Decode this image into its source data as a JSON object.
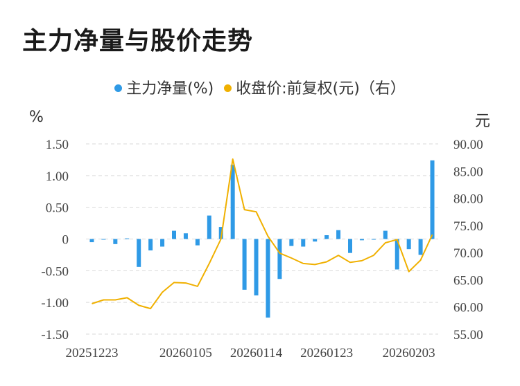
{
  "title": "主力净量与股价走势",
  "legend": {
    "main_force": "主力净量(%)",
    "close_price": "收盘价:前复权(元)（右）"
  },
  "units": {
    "left": "%",
    "right": "元"
  },
  "colors": {
    "bar": "#2f9ae6",
    "line": "#f0b000",
    "grid": "#d9d9d9"
  },
  "chart_data": {
    "type": "bar+line",
    "x_tick_labels": [
      "20251223",
      "20260105",
      "20260114",
      "20260123",
      "20260203"
    ],
    "left_axis": {
      "ticks": [
        "1.50",
        "1.00",
        "0.50",
        "0",
        "-0.50",
        "-1.00",
        "-1.50"
      ],
      "ylim": [
        -1.5,
        1.5
      ]
    },
    "right_axis": {
      "ticks": [
        "90.00",
        "85.00",
        "80.00",
        "75.00",
        "70.00",
        "65.00",
        "60.00",
        "55.00"
      ],
      "ylim": [
        55,
        90
      ]
    },
    "series": [
      {
        "name": "主力净量(%)",
        "type": "bar",
        "values": [
          -0.05,
          0.0,
          -0.08,
          0.01,
          -0.44,
          -0.18,
          -0.12,
          0.13,
          0.09,
          -0.1,
          0.37,
          0.19,
          1.17,
          -0.8,
          -0.89,
          -1.24,
          -0.63,
          -0.11,
          -0.12,
          -0.04,
          0.06,
          0.14,
          -0.22,
          -0.02,
          -0.01,
          0.13,
          -0.48,
          -0.16,
          -0.25,
          1.24
        ]
      },
      {
        "name": "收盘价:前复权(元)（右）",
        "type": "line",
        "values": [
          60.6,
          61.3,
          61.3,
          61.7,
          60.3,
          59.7,
          62.7,
          64.5,
          64.4,
          63.8,
          68.0,
          72.5,
          87.2,
          77.9,
          77.5,
          73.0,
          69.9,
          69.0,
          68.0,
          67.8,
          68.3,
          69.5,
          68.2,
          68.5,
          69.5,
          71.8,
          72.4,
          66.5,
          68.6,
          73.3
        ]
      }
    ]
  }
}
